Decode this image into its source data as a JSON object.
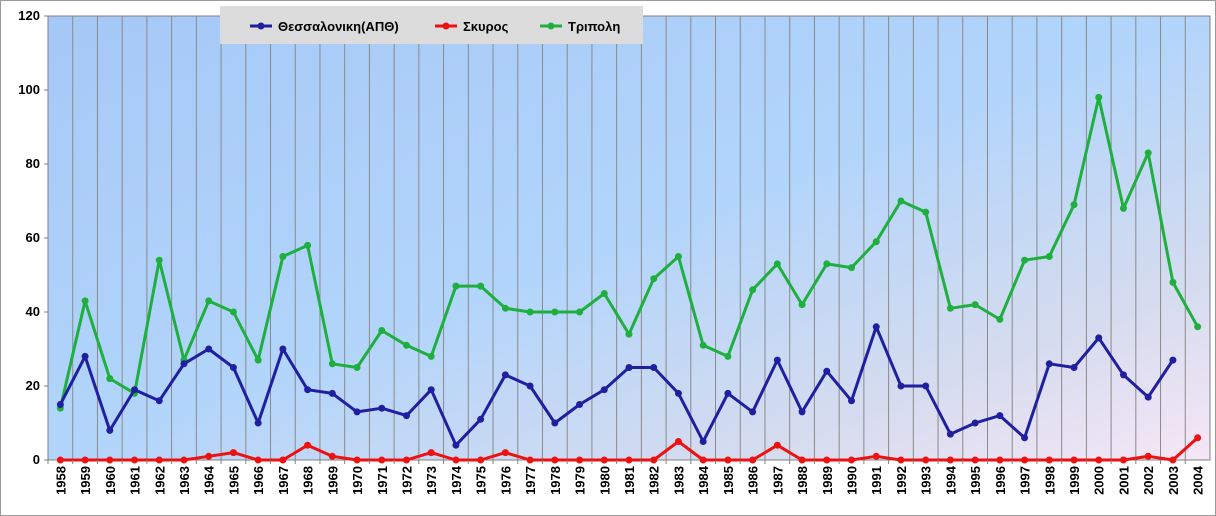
{
  "chart_data": {
    "type": "line",
    "title": "",
    "xlabel": "",
    "ylabel": "",
    "ylim": [
      0,
      120
    ],
    "yticks": [
      "0",
      "20",
      "40",
      "60",
      "80",
      "100",
      "120"
    ],
    "grid": true,
    "legend_position": "top-center",
    "categories": [
      "1958",
      "1959",
      "1960",
      "1961",
      "1962",
      "1963",
      "1964",
      "1965",
      "1966",
      "1967",
      "1968",
      "1969",
      "1970",
      "1971",
      "1972",
      "1973",
      "1974",
      "1975",
      "1976",
      "1977",
      "1978",
      "1979",
      "1980",
      "1981",
      "1982",
      "1983",
      "1984",
      "1985",
      "1986",
      "1987",
      "1988",
      "1989",
      "1990",
      "1991",
      "1992",
      "1993",
      "1994",
      "1995",
      "1996",
      "1997",
      "1998",
      "1999",
      "2000",
      "2001",
      "2002",
      "2003",
      "2004"
    ],
    "series": [
      {
        "name": "Θεσσαλονικη(ΑΠΘ)",
        "color": "#1f1fa0",
        "values": [
          15,
          28,
          8,
          19,
          16,
          26,
          30,
          25,
          10,
          30,
          19,
          18,
          13,
          14,
          12,
          19,
          4,
          11,
          23,
          20,
          10,
          15,
          19,
          25,
          25,
          18,
          5,
          18,
          13,
          27,
          13,
          24,
          16,
          36,
          20,
          20,
          7,
          10,
          12,
          6,
          26,
          25,
          33,
          23,
          17,
          27,
          null
        ]
      },
      {
        "name": "Σκυρος",
        "color": "#ee1111",
        "values": [
          0,
          0,
          0,
          0,
          0,
          0,
          1,
          2,
          0,
          0,
          4,
          1,
          0,
          0,
          0,
          2,
          0,
          0,
          2,
          0,
          0,
          0,
          0,
          0,
          0,
          5,
          0,
          0,
          0,
          4,
          0,
          0,
          0,
          1,
          0,
          0,
          0,
          0,
          0,
          0,
          0,
          0,
          0,
          0,
          1,
          0,
          6
        ]
      },
      {
        "name": "Τριπολη",
        "color": "#1faf3f",
        "values": [
          14,
          43,
          22,
          18,
          54,
          27,
          43,
          40,
          27,
          55,
          58,
          26,
          25,
          35,
          31,
          28,
          47,
          47,
          41,
          40,
          40,
          40,
          45,
          34,
          49,
          55,
          31,
          28,
          46,
          53,
          42,
          53,
          52,
          59,
          70,
          67,
          41,
          42,
          38,
          54,
          55,
          69,
          98,
          68,
          83,
          48,
          36
        ]
      }
    ]
  }
}
